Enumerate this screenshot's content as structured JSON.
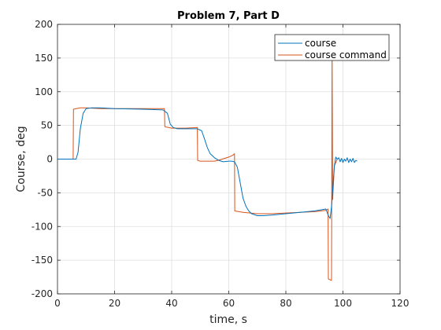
{
  "chart_data": {
    "type": "line",
    "title": "Problem 7, Part D",
    "xlabel": "time, s",
    "ylabel": "Course, deg",
    "xlim": [
      0,
      120
    ],
    "ylim": [
      -200,
      200
    ],
    "xticks": [
      0,
      20,
      40,
      60,
      80,
      100,
      120
    ],
    "yticks": [
      -200,
      -150,
      -100,
      -50,
      0,
      50,
      100,
      150,
      200
    ],
    "grid": true,
    "legend_position": "top-right",
    "series": [
      {
        "name": "course",
        "color": "#0072bd",
        "x": [
          0,
          6.5,
          7.2,
          8,
          9,
          10,
          12,
          15,
          20,
          30,
          37,
          38.5,
          39.5,
          40.5,
          42,
          45,
          49,
          50.5,
          51.5,
          52.5,
          53.5,
          55,
          56.5,
          58,
          60,
          61,
          62,
          63,
          64,
          65,
          66,
          67,
          68,
          70,
          72,
          75,
          80,
          85,
          90,
          94,
          95,
          95.5,
          96,
          96.5,
          97,
          97.5,
          98,
          98.5,
          99,
          99.5,
          100,
          100.5,
          101,
          101.5,
          102,
          102.5,
          103,
          103.5,
          104,
          104.5,
          105
        ],
        "y": [
          0,
          0,
          10,
          45,
          68,
          75,
          76,
          76,
          75,
          74,
          73,
          68,
          52,
          47,
          45,
          45,
          45,
          42,
          30,
          17,
          8,
          2,
          -2,
          -4,
          -3,
          -3,
          -4,
          -12,
          -35,
          -58,
          -70,
          -77,
          -81,
          -84,
          -84,
          -83,
          -81,
          -79,
          -77,
          -74,
          -85,
          -88,
          -70,
          -40,
          -10,
          3,
          0,
          2,
          -4,
          1,
          -5,
          0,
          -3,
          2,
          -5,
          0,
          -4,
          1,
          -5,
          -2,
          -3
        ]
      },
      {
        "name": "course command",
        "color": "#d95319",
        "x": [
          0,
          5.5,
          5.6,
          8,
          10,
          15,
          20,
          30,
          37.5,
          37.6,
          40,
          45,
          49,
          49.1,
          50,
          55,
          57,
          60,
          61.5,
          62,
          62.1,
          65,
          70,
          75,
          80,
          85,
          90,
          94,
          94.8,
          94.9,
          96,
          96.2,
          96.4,
          97,
          98
        ],
        "y": [
          0,
          0,
          74,
          76,
          76,
          75,
          75,
          75,
          75,
          48,
          46,
          46,
          47,
          -2,
          -3,
          -3,
          -1,
          3,
          6,
          8,
          -77,
          -79,
          -81,
          -81,
          -80,
          -79,
          -78,
          -76,
          -74,
          -178,
          -180,
          172,
          -60,
          -10,
          0
        ]
      }
    ]
  }
}
